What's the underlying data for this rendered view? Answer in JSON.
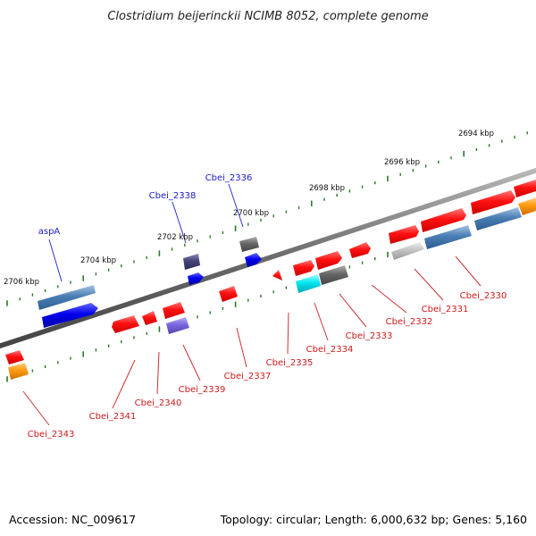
{
  "title": "Clostridium beijerinckii NCIMB 8052, complete genome",
  "footer": {
    "accession": "Accession: NC_009617",
    "summary": "Topology: circular; Length: 6,000,632 bp; Genes: 5,160"
  },
  "colors": {
    "backbone": "#7a7a7a",
    "tick": "#2a7a2a",
    "label_forward": "#1a1acc",
    "label_reverse": "#cc1a1a",
    "leader_forward": "#3333cc",
    "leader_reverse": "#cc3333"
  },
  "chart_data": {
    "type": "genome-map",
    "coordinate_labels": [
      {
        "text": "2694 kbp",
        "position_kbp": 2694
      },
      {
        "text": "2696 kbp",
        "position_kbp": 2696
      },
      {
        "text": "2698 kbp",
        "position_kbp": 2698
      },
      {
        "text": "2700 kbp",
        "position_kbp": 2700
      },
      {
        "text": "2702 kbp",
        "position_kbp": 2702
      },
      {
        "text": "2704 kbp",
        "position_kbp": 2704
      },
      {
        "text": "2706 kbp",
        "position_kbp": 2706
      }
    ],
    "gene_labels": [
      {
        "text": "aspA",
        "strand": "forward"
      },
      {
        "text": "Cbei_2338",
        "strand": "forward"
      },
      {
        "text": "Cbei_2336",
        "strand": "forward"
      },
      {
        "text": "Cbei_2343",
        "strand": "reverse"
      },
      {
        "text": "Cbei_2341",
        "strand": "reverse"
      },
      {
        "text": "Cbei_2340",
        "strand": "reverse"
      },
      {
        "text": "Cbei_2339",
        "strand": "reverse"
      },
      {
        "text": "Cbei_2337",
        "strand": "reverse"
      },
      {
        "text": "Cbei_2335",
        "strand": "reverse"
      },
      {
        "text": "Cbei_2334",
        "strand": "reverse"
      },
      {
        "text": "Cbei_2333",
        "strand": "reverse"
      },
      {
        "text": "Cbei_2332",
        "strand": "reverse"
      },
      {
        "text": "Cbei_2331",
        "strand": "reverse"
      },
      {
        "text": "Cbei_2330",
        "strand": "reverse"
      }
    ]
  }
}
